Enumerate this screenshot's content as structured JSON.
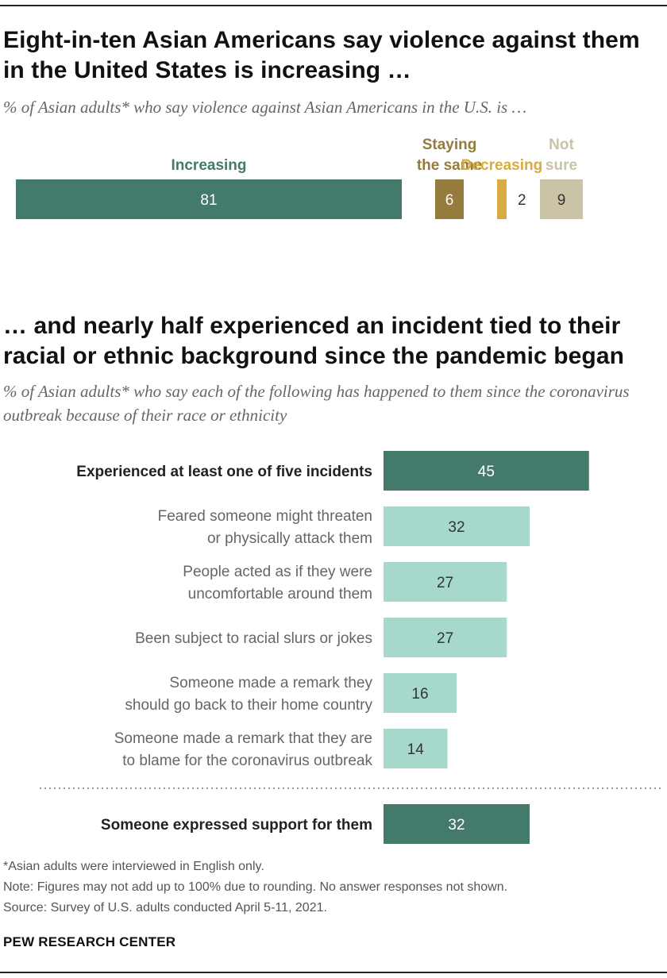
{
  "part1": {
    "title": "Eight-in-ten Asian Americans say violence against them in the United States is increasing …",
    "subtitle": "% of Asian adults* who say violence against Asian Americans in the U.S. is …"
  },
  "part2": {
    "title": "… and nearly half experienced an incident tied to their racial or ethnic background since the pandemic began",
    "subtitle": "% of Asian adults* who say each of the following has happened to them since the coronavirus outbreak because of their race or ethnicity"
  },
  "chart_data": [
    {
      "type": "bar",
      "orientation": "horizontal-stacked",
      "title": "Eight-in-ten Asian Americans say violence against them in the United States is increasing …",
      "categories": [
        "Increasing",
        "Staying the same",
        "Decreasing",
        "Not sure"
      ],
      "category_lines": [
        [
          "Increasing"
        ],
        [
          "Staying",
          "the same"
        ],
        [
          "Decreasing"
        ],
        [
          "Not",
          "sure"
        ]
      ],
      "values": [
        81,
        6,
        2,
        9
      ],
      "colors": [
        "#447a6c",
        "#957b3d",
        "#d6ac43",
        "#cbc3a6"
      ],
      "label_colors": [
        "#447a6c",
        "#957b3d",
        "#d6ac43",
        "#cbc3a6"
      ],
      "value_text_colors": [
        "#ffffff",
        "#ffffff",
        "#333333",
        "#333333"
      ],
      "xlim": [
        0,
        100
      ]
    },
    {
      "type": "bar",
      "orientation": "horizontal",
      "title": "… and nearly half experienced an incident tied to their racial or ethnic background since the pandemic began",
      "categories": [
        "Experienced at least one of five incidents",
        "Feared someone might threaten or physically attack them",
        "People acted as if they were uncomfortable around them",
        "Been subject to racial slurs or jokes",
        "Someone made a remark they should go back to their home country",
        "Someone made a remark that they are to blame for the coronavirus outbreak",
        "Someone expressed support for them"
      ],
      "category_lines": [
        [
          "Experienced at least one of five incidents"
        ],
        [
          "Feared someone might threaten",
          "or physically attack them"
        ],
        [
          "People acted as if they were",
          "uncomfortable around them"
        ],
        [
          "Been subject to racial slurs or jokes"
        ],
        [
          "Someone made a remark they",
          "should go back to their home country"
        ],
        [
          "Someone made a remark that they are",
          "to blame for the coronavirus outbreak"
        ],
        [
          "Someone expressed support for them"
        ]
      ],
      "values": [
        45,
        32,
        27,
        27,
        16,
        14,
        32
      ],
      "emphasis": [
        true,
        false,
        false,
        false,
        false,
        false,
        true
      ],
      "colors": {
        "emphasis": "#447a6c",
        "normal": "#a6d8cb"
      },
      "value_text_colors": {
        "emphasis": "#ffffff",
        "normal": "#333333"
      },
      "separator_before_index": 6,
      "xlim": [
        0,
        100
      ]
    }
  ],
  "footnotes": {
    "asterisk": "*Asian adults were interviewed in English only.",
    "note": "Note: Figures may not add up to 100% due to rounding. No answer responses not shown.",
    "source": "Source: Survey of U.S. adults conducted April 5-11, 2021."
  },
  "brand": "PEW RESEARCH CENTER"
}
